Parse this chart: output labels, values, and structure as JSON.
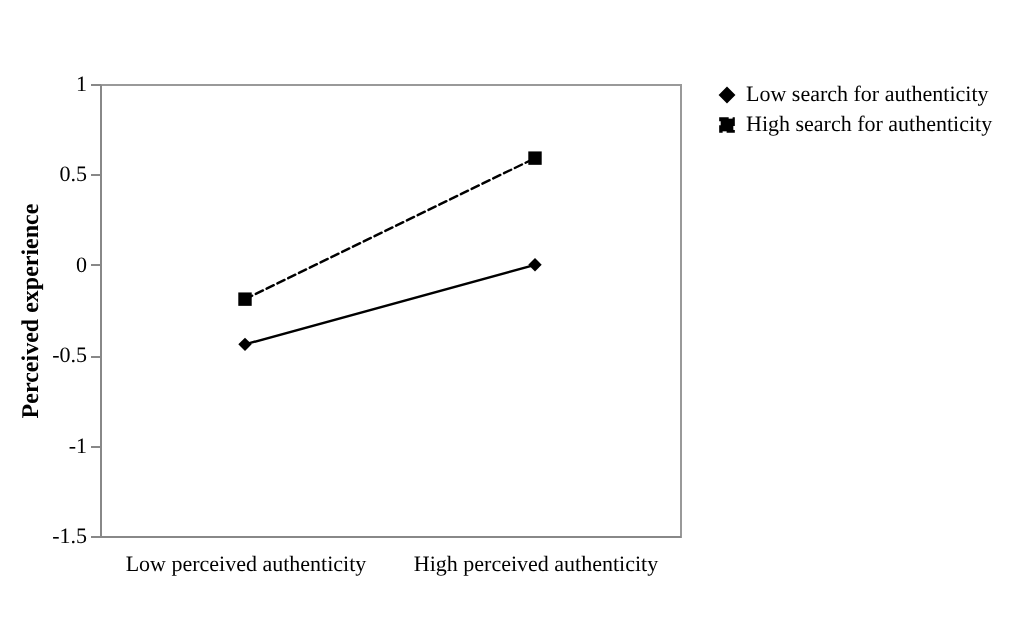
{
  "chart_data": {
    "type": "line",
    "xlabel": null,
    "ylabel": "Perceived experience",
    "categories": [
      "Low perceived authenticity",
      "High perceived authenticity"
    ],
    "series": [
      {
        "name": "Low search for authenticity",
        "color": "#000000",
        "values": [
          -0.44,
          0.0
        ],
        "marker": "diamond",
        "line_style": "solid"
      },
      {
        "name": "High search for authenticity",
        "color": "#000000",
        "values": [
          -0.19,
          0.59
        ],
        "marker": "square",
        "line_style": "dashed"
      }
    ],
    "ylim": [
      -1.5,
      1
    ],
    "yticks": [
      -1.5,
      -1,
      -0.5,
      0,
      0.5,
      1
    ],
    "grid": false,
    "legend": "right"
  }
}
